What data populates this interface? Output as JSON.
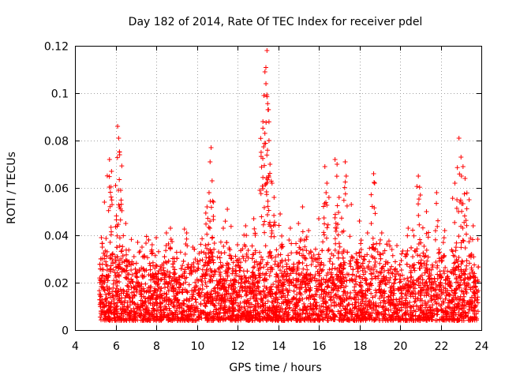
{
  "chart_data": {
    "type": "scatter",
    "title": "Day 182 of 2014, Rate Of TEC Index for receiver pdel",
    "xlabel": "GPS time / hours",
    "ylabel": "ROTI / TECUs",
    "xlim": [
      4,
      24
    ],
    "ylim": [
      0,
      0.12
    ],
    "xticks": [
      4,
      6,
      8,
      10,
      12,
      14,
      16,
      18,
      20,
      22,
      24
    ],
    "yticks": [
      0,
      0.02,
      0.04,
      0.06,
      0.08,
      0.1,
      0.12
    ],
    "xtick_labels": [
      "4",
      "6",
      "8",
      "10",
      "12",
      "14",
      "16",
      "18",
      "20",
      "22",
      "24"
    ],
    "ytick_labels": [
      "0",
      "0.02",
      "0.04",
      "0.06",
      "0.08",
      "0.1",
      "0.12"
    ],
    "grid": true,
    "marker": "plus",
    "series": [
      {
        "name": "ROTI",
        "color": "#ff0000",
        "x_range": [
          5.2,
          23.85
        ],
        "typical_band": [
          0.004,
          0.03
        ],
        "peaks": [
          {
            "x": 5.3,
            "y": 0.039
          },
          {
            "x": 5.45,
            "y": 0.054
          },
          {
            "x": 5.7,
            "y": 0.072
          },
          {
            "x": 5.8,
            "y": 0.067
          },
          {
            "x": 6.0,
            "y": 0.061
          },
          {
            "x": 6.1,
            "y": 0.086
          },
          {
            "x": 6.15,
            "y": 0.081
          },
          {
            "x": 6.2,
            "y": 0.074
          },
          {
            "x": 6.25,
            "y": 0.059
          },
          {
            "x": 6.5,
            "y": 0.045
          },
          {
            "x": 7.3,
            "y": 0.035
          },
          {
            "x": 7.8,
            "y": 0.036
          },
          {
            "x": 8.0,
            "y": 0.039
          },
          {
            "x": 8.5,
            "y": 0.041
          },
          {
            "x": 8.7,
            "y": 0.043
          },
          {
            "x": 9.5,
            "y": 0.041
          },
          {
            "x": 9.8,
            "y": 0.035
          },
          {
            "x": 10.5,
            "y": 0.052
          },
          {
            "x": 10.6,
            "y": 0.058
          },
          {
            "x": 10.65,
            "y": 0.071
          },
          {
            "x": 10.7,
            "y": 0.077
          },
          {
            "x": 10.75,
            "y": 0.063
          },
          {
            "x": 11.3,
            "y": 0.043
          },
          {
            "x": 11.5,
            "y": 0.051
          },
          {
            "x": 12.0,
            "y": 0.036
          },
          {
            "x": 12.4,
            "y": 0.044
          },
          {
            "x": 12.8,
            "y": 0.047
          },
          {
            "x": 13.1,
            "y": 0.059
          },
          {
            "x": 13.25,
            "y": 0.088
          },
          {
            "x": 13.3,
            "y": 0.099
          },
          {
            "x": 13.35,
            "y": 0.109
          },
          {
            "x": 13.4,
            "y": 0.104
          },
          {
            "x": 13.45,
            "y": 0.118
          },
          {
            "x": 13.5,
            "y": 0.093
          },
          {
            "x": 13.55,
            "y": 0.08
          },
          {
            "x": 13.6,
            "y": 0.07
          },
          {
            "x": 13.7,
            "y": 0.062
          },
          {
            "x": 13.8,
            "y": 0.056
          },
          {
            "x": 14.1,
            "y": 0.049
          },
          {
            "x": 14.6,
            "y": 0.043
          },
          {
            "x": 15.0,
            "y": 0.045
          },
          {
            "x": 15.2,
            "y": 0.052
          },
          {
            "x": 15.5,
            "y": 0.042
          },
          {
            "x": 16.0,
            "y": 0.047
          },
          {
            "x": 16.3,
            "y": 0.069
          },
          {
            "x": 16.4,
            "y": 0.062
          },
          {
            "x": 16.5,
            "y": 0.056
          },
          {
            "x": 16.8,
            "y": 0.072
          },
          {
            "x": 16.9,
            "y": 0.07
          },
          {
            "x": 17.0,
            "y": 0.056
          },
          {
            "x": 17.3,
            "y": 0.071
          },
          {
            "x": 17.35,
            "y": 0.065
          },
          {
            "x": 17.6,
            "y": 0.053
          },
          {
            "x": 18.0,
            "y": 0.046
          },
          {
            "x": 18.4,
            "y": 0.041
          },
          {
            "x": 18.7,
            "y": 0.066
          },
          {
            "x": 18.75,
            "y": 0.062
          },
          {
            "x": 19.1,
            "y": 0.041
          },
          {
            "x": 19.6,
            "y": 0.034
          },
          {
            "x": 20.4,
            "y": 0.043
          },
          {
            "x": 20.9,
            "y": 0.065
          },
          {
            "x": 21.0,
            "y": 0.057
          },
          {
            "x": 21.3,
            "y": 0.05
          },
          {
            "x": 21.8,
            "y": 0.058
          },
          {
            "x": 22.2,
            "y": 0.042
          },
          {
            "x": 22.7,
            "y": 0.062
          },
          {
            "x": 22.8,
            "y": 0.055
          },
          {
            "x": 22.9,
            "y": 0.081
          },
          {
            "x": 23.0,
            "y": 0.073
          },
          {
            "x": 23.1,
            "y": 0.069
          },
          {
            "x": 23.2,
            "y": 0.064
          },
          {
            "x": 23.4,
            "y": 0.055
          },
          {
            "x": 23.6,
            "y": 0.044
          }
        ]
      }
    ]
  }
}
